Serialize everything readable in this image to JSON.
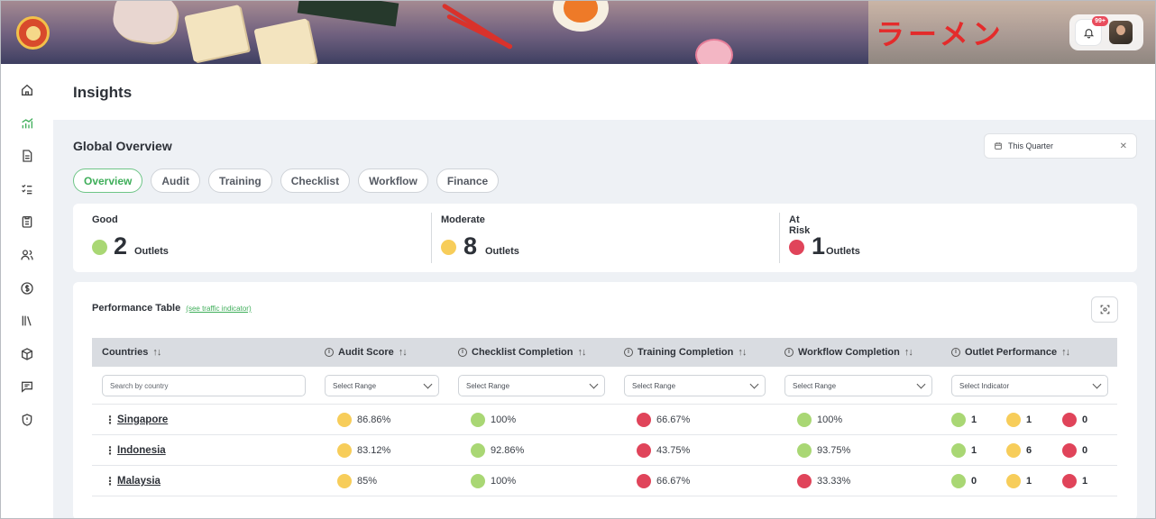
{
  "header": {
    "ramen_text": "ラーメン",
    "notification_badge": "99+"
  },
  "page": {
    "title": "Insights"
  },
  "global": {
    "title": "Global Overview",
    "date_filter": "This Quarter"
  },
  "tabs": [
    "Overview",
    "Audit",
    "Training",
    "Checklist",
    "Workflow",
    "Finance"
  ],
  "summary": [
    {
      "label": "Good",
      "count": "2",
      "unit": "Outlets",
      "color": "#a9d774"
    },
    {
      "label": "Moderate",
      "count": "8",
      "unit": "Outlets",
      "color": "#f7cd5a"
    },
    {
      "label": "At Risk",
      "count": "1",
      "unit": "Outlets",
      "color": "#e0445a"
    }
  ],
  "performance": {
    "title": "Performance Table",
    "link": "(see traffic indicator)",
    "columns": [
      "Countries",
      "Audit Score",
      "Checklist Completion",
      "Training Completion",
      "Workflow Completion",
      "Outlet Performance"
    ],
    "filters": {
      "country_placeholder": "Search by country",
      "range": "Select Range",
      "indicator": "Select Indicator"
    },
    "rows": [
      {
        "country": "Singapore",
        "audit": "86.86%",
        "checklist": "100%",
        "training": "66.67%",
        "workflow": "100%",
        "good": "1",
        "moderate": "1",
        "risk": "0"
      },
      {
        "country": "Indonesia",
        "audit": "83.12%",
        "checklist": "92.86%",
        "training": "43.75%",
        "workflow": "93.75%",
        "good": "1",
        "moderate": "6",
        "risk": "0"
      },
      {
        "country": "Malaysia",
        "audit": "85%",
        "checklist": "100%",
        "training": "66.67%",
        "workflow": "33.33%",
        "good": "0",
        "moderate": "1",
        "risk": "1"
      }
    ],
    "row_colors": [
      {
        "audit": "yellow",
        "checklist": "green",
        "training": "red",
        "workflow": "green"
      },
      {
        "audit": "yellow",
        "checklist": "green",
        "training": "red",
        "workflow": "green"
      },
      {
        "audit": "yellow",
        "checklist": "green",
        "training": "red",
        "workflow": "red"
      }
    ]
  },
  "sidebar_icons": [
    "home-icon",
    "insights-chart-icon",
    "document-icon",
    "task-list-icon",
    "clipboard-icon",
    "users-icon",
    "dollar-icon",
    "library-icon",
    "box-icon",
    "chat-icon",
    "shield-icon"
  ]
}
